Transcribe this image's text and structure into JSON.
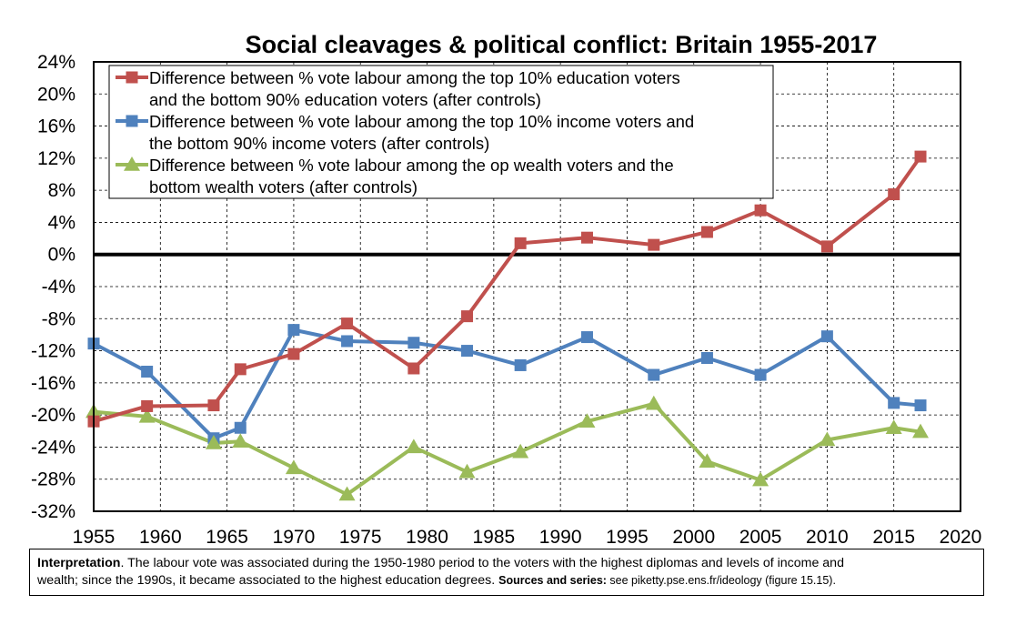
{
  "chart_data": {
    "type": "line",
    "title": "Social cleavages & political conflict: Britain 1955-2017",
    "xlabel": "",
    "ylabel": "",
    "xlim": [
      1955,
      2020
    ],
    "ylim": [
      -32,
      24
    ],
    "x_ticks": [
      "1955",
      "1960",
      "1965",
      "1970",
      "1975",
      "1980",
      "1985",
      "1990",
      "1995",
      "2000",
      "2005",
      "2010",
      "2015",
      "2020"
    ],
    "y_ticks": [
      "24%",
      "20%",
      "16%",
      "12%",
      "8%",
      "4%",
      "0%",
      "-4%",
      "-8%",
      "-12%",
      "-16%",
      "-20%",
      "-24%",
      "-28%",
      "-32%"
    ],
    "grid": true,
    "legend_position": "top-left",
    "series": [
      {
        "name": "Difference between % vote labour among the top 10% education voters and the bottom 90% education voters (after controls)",
        "legend_lines": [
          "Difference between % vote labour among the top 10% education voters",
          "and the bottom 90% education voters (after controls)"
        ],
        "color": "#c0504d",
        "marker": "square",
        "x": [
          1955,
          1959,
          1964,
          1966,
          1970,
          1974,
          1979,
          1983,
          1987,
          1992,
          1997,
          2001,
          2005,
          2010,
          2015,
          2017
        ],
        "y": [
          -20.8,
          -18.9,
          -18.8,
          -14.3,
          -12.4,
          -8.6,
          -14.2,
          -7.7,
          1.4,
          2.1,
          1.2,
          2.8,
          5.5,
          1.0,
          7.5,
          12.2
        ]
      },
      {
        "name": "Difference between % vote labour among the top 10% income voters and the bottom 90% income voters (after controls)",
        "legend_lines": [
          "Difference between % vote labour among the top 10% income voters and",
          "the bottom 90% income voters (after controls)"
        ],
        "color": "#4f81bd",
        "marker": "square",
        "x": [
          1955,
          1959,
          1964,
          1966,
          1970,
          1974,
          1979,
          1983,
          1987,
          1992,
          1997,
          2001,
          2005,
          2010,
          2015,
          2017
        ],
        "y": [
          -11.1,
          -14.6,
          -22.9,
          -21.6,
          -9.4,
          -10.8,
          -11.0,
          -12.0,
          -13.8,
          -10.3,
          -15.0,
          -12.9,
          -15.0,
          -10.2,
          -18.5,
          -18.8
        ]
      },
      {
        "name": "Difference between % vote labour among the op wealth voters and the bottom wealth voters (after controls)",
        "legend_lines": [
          "Difference between % vote labour among the op wealth voters and the",
          "bottom wealth voters (after controls)"
        ],
        "color": "#9bbb59",
        "marker": "triangle",
        "x": [
          1955,
          1959,
          1964,
          1966,
          1970,
          1974,
          1979,
          1983,
          1987,
          1992,
          1997,
          2001,
          2005,
          2010,
          2015,
          2017
        ],
        "y": [
          -19.6,
          -20.2,
          -23.5,
          -23.3,
          -26.6,
          -29.9,
          -24.0,
          -27.1,
          -24.6,
          -20.8,
          -18.6,
          -25.8,
          -28.1,
          -23.1,
          -21.6,
          -22.1
        ]
      }
    ]
  },
  "note": {
    "interp_label": "Interpretation",
    "interp_text_1": ". The labour vote was associated during the 1950-1980 period to the voters with the highest diplomas and levels of income and",
    "interp_text_2": "wealth; since the 1990s, it became associated to the highest education degrees. ",
    "sources_label": "Sources and series:",
    "sources_text": " see piketty.pse.ens.fr/ideology (figure 15.15)."
  }
}
